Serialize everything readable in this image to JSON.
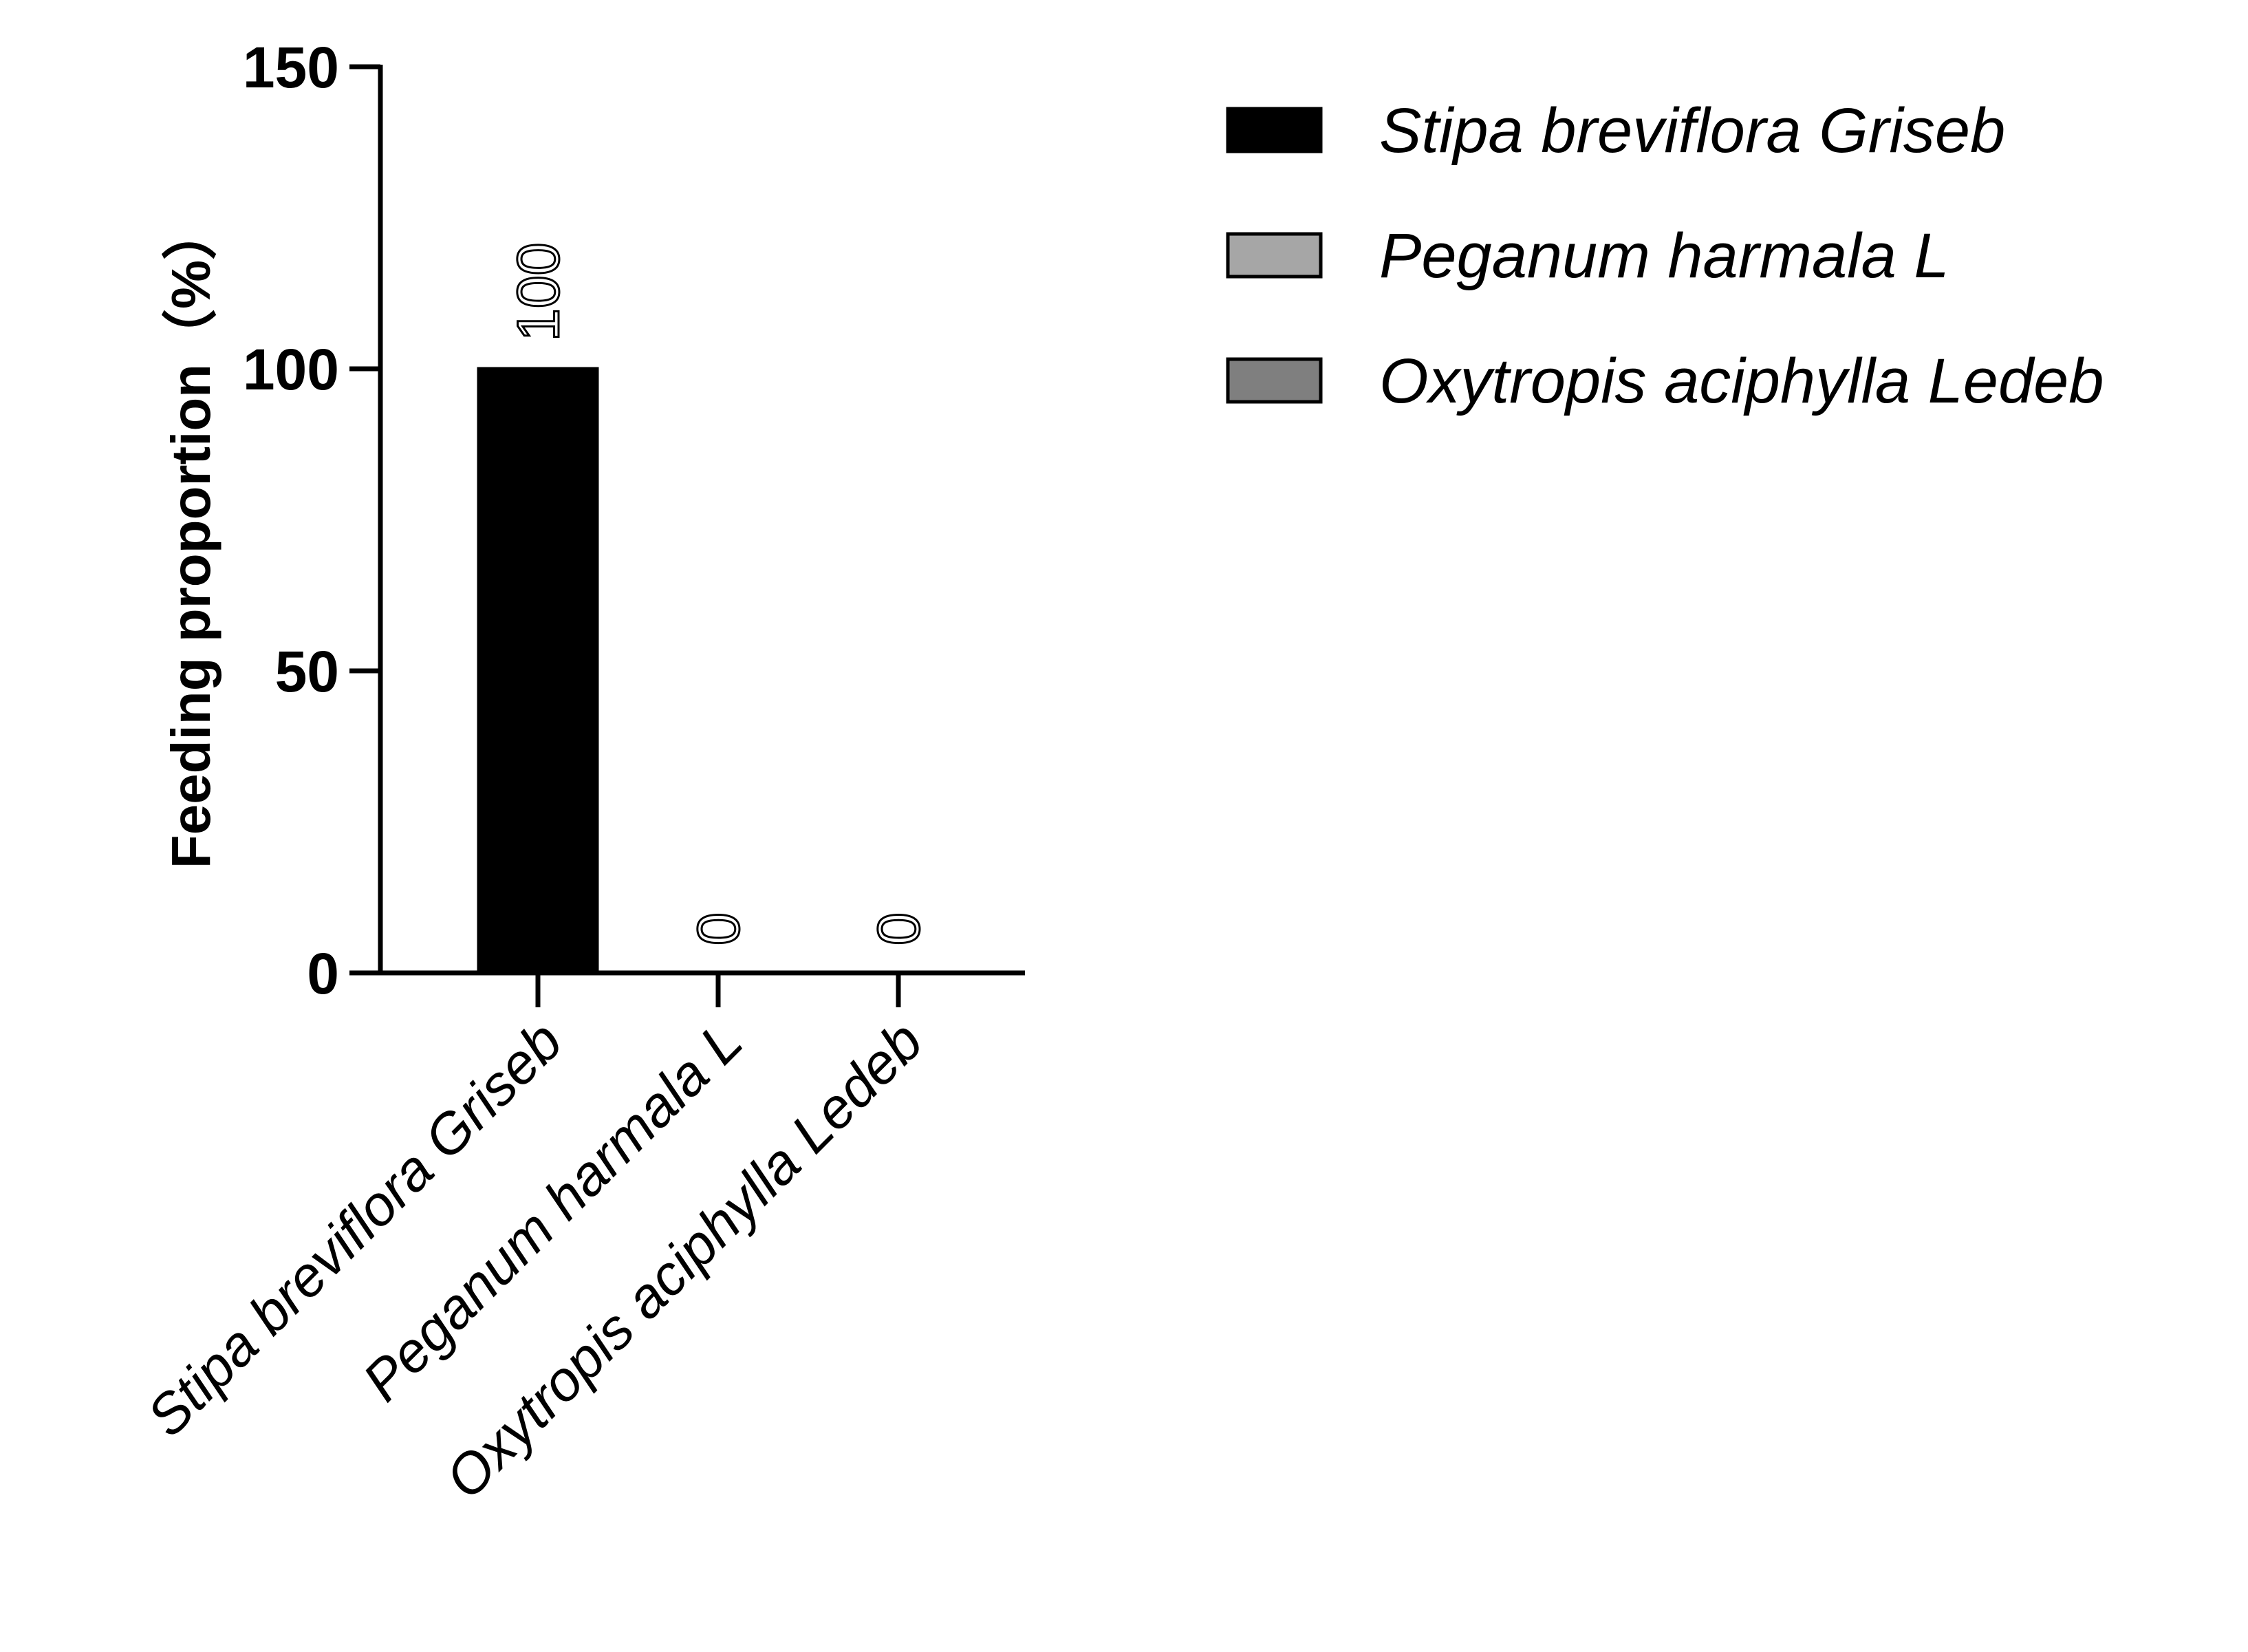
{
  "chart_data": {
    "type": "bar",
    "title": "",
    "xlabel": "",
    "ylabel": "Feeding proportion（%）",
    "ylim": [
      0,
      150
    ],
    "yticks": [
      0,
      50,
      100,
      150
    ],
    "categories": [
      "Stipa breviflora Griseb",
      "Peganum harmala L",
      "Oxytropis aciphylla Ledeb"
    ],
    "values": [
      100,
      0,
      0
    ],
    "data_labels": [
      "100",
      "0",
      "0"
    ],
    "colors": [
      "#000000",
      "#a6a6a6",
      "#7f7f7f"
    ],
    "grid": false,
    "legend": {
      "placement": "top-right",
      "entries": [
        {
          "label": "Stipa breviflora Griseb",
          "color": "#000000"
        },
        {
          "label": "Peganum harmala L",
          "color": "#a6a6a6"
        },
        {
          "label": "Oxytropis aciphylla Ledeb",
          "color": "#7f7f7f"
        }
      ]
    }
  }
}
